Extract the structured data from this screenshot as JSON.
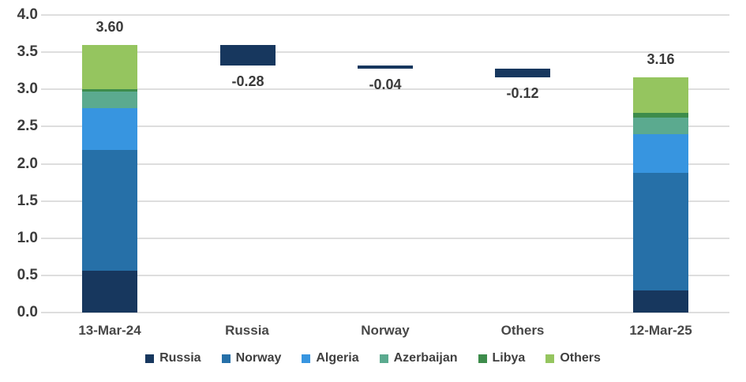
{
  "chart_data": {
    "type": "bar",
    "subtype": "waterfall_stacked_bar",
    "title": "",
    "xlabel": "",
    "ylabel": "",
    "y_axis": {
      "min": 0,
      "max": 4.0,
      "step": 0.5,
      "tick_labels": [
        "0.0",
        "0.5",
        "1.0",
        "1.5",
        "2.0",
        "2.5",
        "3.0",
        "3.5",
        "4.0"
      ]
    },
    "grid": "horizontal",
    "categories": [
      "13-Mar-24",
      "Russia",
      "Norway",
      "Others",
      "12-Mar-25"
    ],
    "series": [
      {
        "name": "Russia",
        "color": "#17375e"
      },
      {
        "name": "Norway",
        "color": "#2670a8"
      },
      {
        "name": "Algeria",
        "color": "#3795e0"
      },
      {
        "name": "Azerbaijan",
        "color": "#5baa8f"
      },
      {
        "name": "Libya",
        "color": "#3d8c4b"
      },
      {
        "name": "Others",
        "color": "#95c55f"
      }
    ],
    "columns": [
      {
        "category": "13-Mar-24",
        "type": "stacked",
        "total": 3.6,
        "data_label": "3.60",
        "segments": [
          {
            "series": "Russia",
            "value": 0.57
          },
          {
            "series": "Norway",
            "value": 1.62
          },
          {
            "series": "Algeria",
            "value": 0.56
          },
          {
            "series": "Azerbaijan",
            "value": 0.22
          },
          {
            "series": "Libya",
            "value": 0.04
          },
          {
            "series": "Others",
            "value": 0.59
          }
        ]
      },
      {
        "category": "Russia",
        "type": "delta",
        "value": -0.28,
        "data_label": "-0.28",
        "from": 3.6,
        "to": 3.32,
        "color": "#17375e"
      },
      {
        "category": "Norway",
        "type": "delta",
        "value": -0.04,
        "data_label": "-0.04",
        "from": 3.32,
        "to": 3.28,
        "color": "#17375e"
      },
      {
        "category": "Others",
        "type": "delta",
        "value": -0.12,
        "data_label": "-0.12",
        "from": 3.28,
        "to": 3.16,
        "color": "#17375e"
      },
      {
        "category": "12-Mar-25",
        "type": "stacked",
        "total": 3.16,
        "data_label": "3.16",
        "segments": [
          {
            "series": "Russia",
            "value": 0.3
          },
          {
            "series": "Norway",
            "value": 1.58
          },
          {
            "series": "Algeria",
            "value": 0.52
          },
          {
            "series": "Azerbaijan",
            "value": 0.22
          },
          {
            "series": "Libya",
            "value": 0.06
          },
          {
            "series": "Others",
            "value": 0.48
          }
        ]
      }
    ],
    "legend": {
      "position": "bottom",
      "items": [
        "Russia",
        "Norway",
        "Algeria",
        "Azerbaijan",
        "Libya",
        "Others"
      ]
    },
    "colors": {
      "background": "#ffffff",
      "gridline": "#dedede",
      "tick_label": "#3c3c3c",
      "category_label": "#474747",
      "data_label": "#3a3a3a",
      "legend_label": "#3f3f3f"
    }
  }
}
